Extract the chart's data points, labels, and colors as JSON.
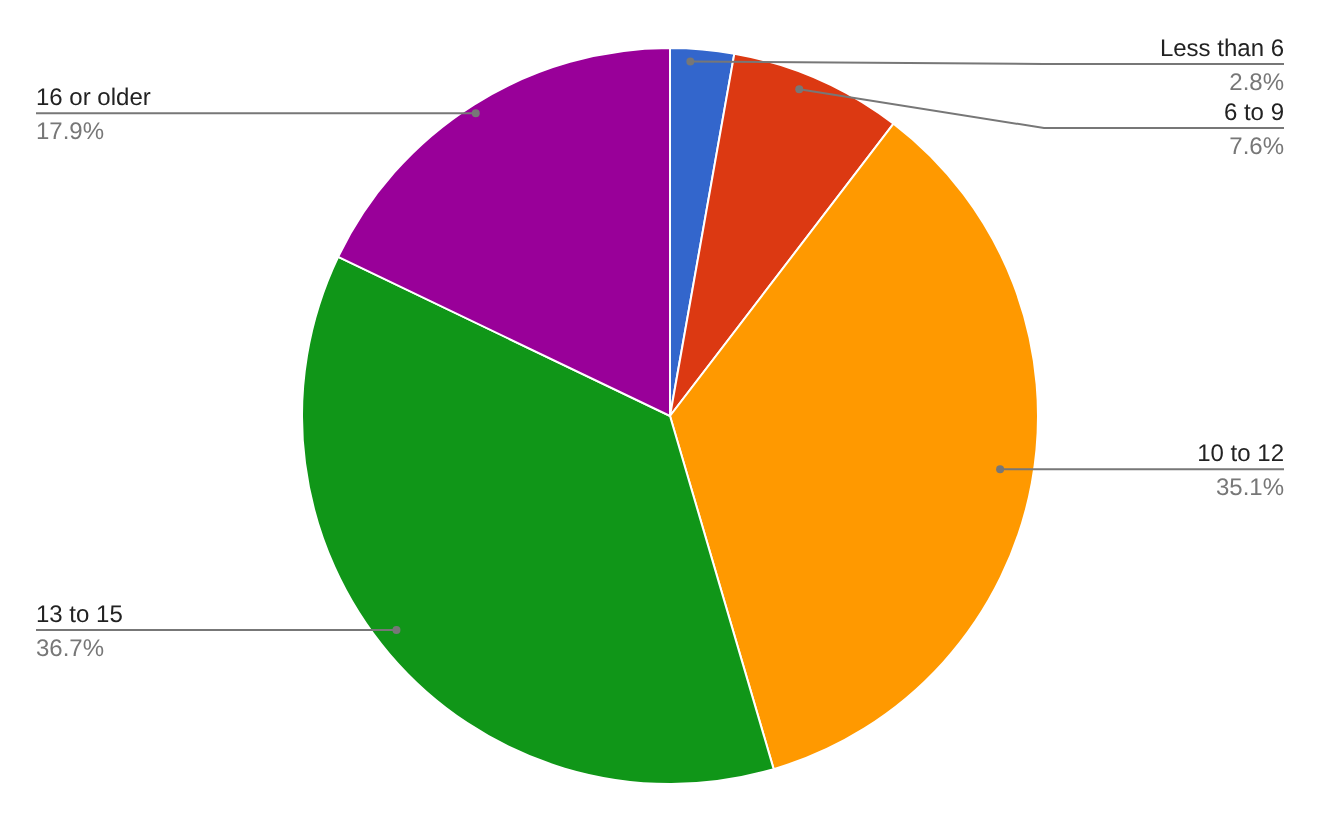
{
  "chart_data": {
    "type": "pie",
    "categories": [
      "Less than 6",
      "6 to 9",
      "10 to 12",
      "13 to 15",
      "16 or older"
    ],
    "values": [
      2.8,
      7.6,
      35.1,
      36.7,
      17.9
    ],
    "value_labels": [
      "2.8%",
      "7.6%",
      "35.1%",
      "36.7%",
      "17.9%"
    ],
    "colors": [
      "#3366cc",
      "#dc3912",
      "#ff9900",
      "#109618",
      "#990099"
    ]
  }
}
